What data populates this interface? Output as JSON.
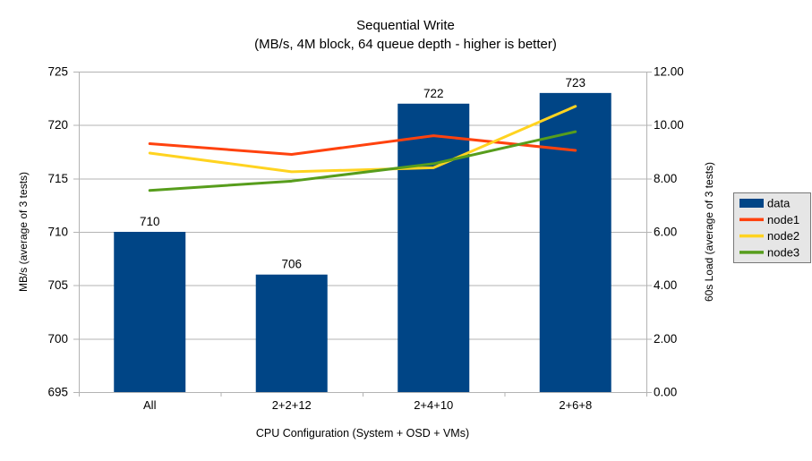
{
  "title": {
    "line1": "Sequential Write",
    "line2": "(MB/s, 4M block, 64 queue depth - higher is better)"
  },
  "chart_data": {
    "type": "combo-bar-line",
    "categories": [
      "All",
      "2+2+12",
      "2+4+10",
      "2+6+8"
    ],
    "series": [
      {
        "name": "data",
        "type": "bar",
        "axis": "left",
        "color": "#004586",
        "values": [
          710,
          706,
          722,
          723
        ],
        "data_labels": [
          "710",
          "706",
          "722",
          "723"
        ]
      },
      {
        "name": "node1",
        "type": "line",
        "axis": "right",
        "color": "#ff420e",
        "values": [
          9.3,
          8.9,
          9.6,
          9.05
        ]
      },
      {
        "name": "node2",
        "type": "line",
        "axis": "right",
        "color": "#ffd320",
        "values": [
          8.95,
          8.25,
          8.4,
          10.7
        ]
      },
      {
        "name": "node3",
        "type": "line",
        "axis": "right",
        "color": "#579d1c",
        "values": [
          7.55,
          7.9,
          8.55,
          9.75
        ]
      }
    ],
    "left_axis": {
      "title": "MB/s (average of 3 tests)",
      "min": 695,
      "max": 725,
      "step": 5,
      "ticks": [
        "695",
        "700",
        "705",
        "710",
        "715",
        "720",
        "725"
      ]
    },
    "right_axis": {
      "title": "60s Load (average of 3 tests)",
      "min": 0,
      "max": 12,
      "step": 2,
      "ticks": [
        "0.00",
        "2.00",
        "4.00",
        "6.00",
        "8.00",
        "10.00",
        "12.00"
      ]
    },
    "x_axis": {
      "title": "CPU Configuration (System + OSD + VMs)"
    },
    "legend": {
      "position": "right",
      "items": [
        {
          "label": "data",
          "swatch": "bar",
          "color": "#004586"
        },
        {
          "label": "node1",
          "swatch": "line",
          "color": "#ff420e"
        },
        {
          "label": "node2",
          "swatch": "line",
          "color": "#ffd320"
        },
        {
          "label": "node3",
          "swatch": "line",
          "color": "#579d1c"
        }
      ]
    },
    "grid": "horizontal",
    "colors": {
      "background": "#ffffff",
      "grid": "#b3b3b3",
      "axis": "#b3b3b3",
      "text": "#000000",
      "legend_bg": "#e6e6e6",
      "legend_border": "#787878"
    }
  }
}
